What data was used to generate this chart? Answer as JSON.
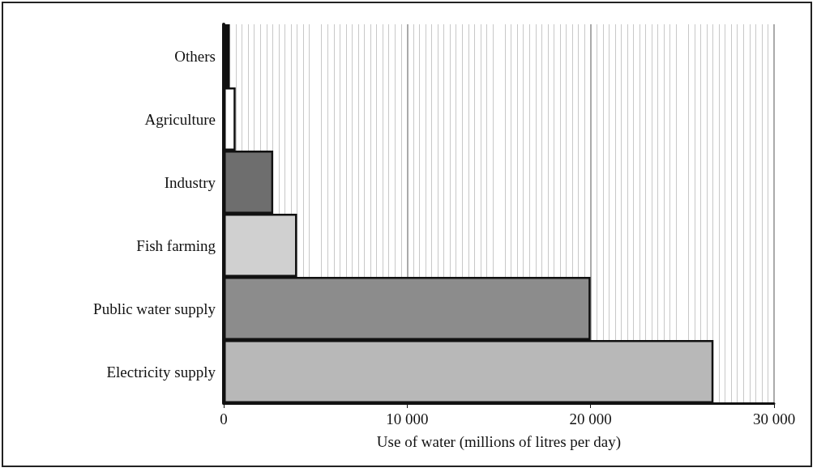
{
  "chart_data": {
    "type": "bar",
    "orientation": "horizontal",
    "xlabel": "Use of water (millions of litres per day)",
    "categories": [
      "Others",
      "Agriculture",
      "Industry",
      "Fish farming",
      "Public water supply",
      "Electricity supply"
    ],
    "values": [
      330,
      650,
      2700,
      4000,
      20000,
      26700
    ],
    "colors": [
      "#111111",
      "#ffffff",
      "#6e6e6e",
      "#d0d0d0",
      "#8c8c8c",
      "#b8b8b8"
    ],
    "xlim": [
      0,
      30000
    ],
    "xticks": [
      {
        "value": 0,
        "label": "0"
      },
      {
        "value": 10000,
        "label": "10 000"
      },
      {
        "value": 20000,
        "label": "20 000"
      },
      {
        "value": 30000,
        "label": "30 000"
      }
    ],
    "grid": true
  }
}
